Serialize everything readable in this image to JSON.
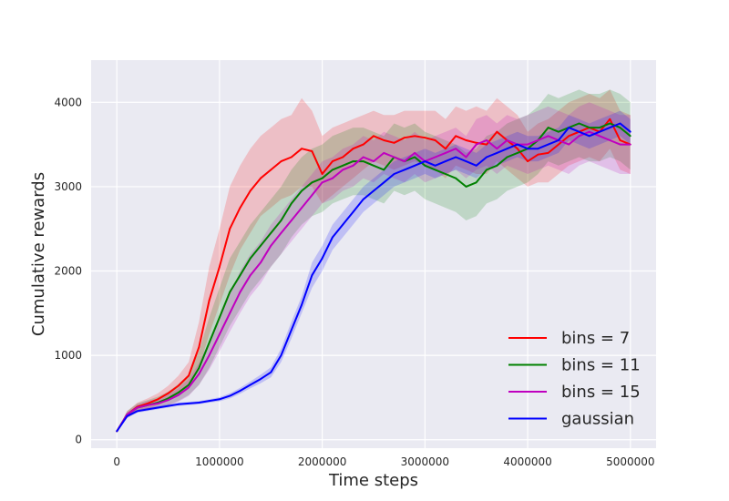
{
  "chart_data": {
    "type": "line",
    "title": "",
    "xlabel": "Time steps",
    "ylabel": "Cumulative rewards",
    "xlim": [
      -250000,
      5250000
    ],
    "ylim": [
      -100,
      4500
    ],
    "x_ticks": [
      0,
      1000000,
      2000000,
      3000000,
      4000000,
      5000000
    ],
    "x_tick_labels": [
      "0",
      "1000000",
      "2000000",
      "3000000",
      "4000000",
      "5000000"
    ],
    "y_ticks": [
      0,
      1000,
      2000,
      3000,
      4000
    ],
    "y_tick_labels": [
      "0",
      "1000",
      "2000",
      "3000",
      "4000"
    ],
    "grid": true,
    "background": "#eaeaf2",
    "legend_position": "lower-right",
    "x": [
      0,
      100000,
      200000,
      300000,
      400000,
      500000,
      600000,
      700000,
      800000,
      900000,
      1000000,
      1100000,
      1200000,
      1300000,
      1400000,
      1500000,
      1600000,
      1700000,
      1800000,
      1900000,
      2000000,
      2100000,
      2200000,
      2300000,
      2400000,
      2500000,
      2600000,
      2700000,
      2800000,
      2900000,
      3000000,
      3100000,
      3200000,
      3300000,
      3400000,
      3500000,
      3600000,
      3700000,
      3800000,
      3900000,
      4000000,
      4100000,
      4200000,
      4300000,
      4400000,
      4500000,
      4600000,
      4700000,
      4800000,
      4900000,
      5000000
    ],
    "series": [
      {
        "name": "bins = 7",
        "color": "#ff0000",
        "values": [
          100,
          300,
          390,
          430,
          480,
          550,
          640,
          760,
          1100,
          1650,
          2050,
          2500,
          2750,
          2950,
          3100,
          3200,
          3300,
          3350,
          3450,
          3420,
          3150,
          3300,
          3350,
          3450,
          3500,
          3600,
          3550,
          3520,
          3580,
          3600,
          3580,
          3550,
          3450,
          3600,
          3550,
          3520,
          3500,
          3650,
          3550,
          3450,
          3300,
          3380,
          3400,
          3500,
          3600,
          3650,
          3700,
          3650,
          3800,
          3550,
          3500
        ],
        "band": [
          [
            100,
            100
          ],
          [
            260,
            340
          ],
          [
            340,
            440
          ],
          [
            370,
            490
          ],
          [
            410,
            550
          ],
          [
            460,
            640
          ],
          [
            520,
            760
          ],
          [
            600,
            920
          ],
          [
            850,
            1400
          ],
          [
            1250,
            2050
          ],
          [
            1600,
            2500
          ],
          [
            1950,
            3000
          ],
          [
            2250,
            3250
          ],
          [
            2450,
            3450
          ],
          [
            2650,
            3600
          ],
          [
            2750,
            3700
          ],
          [
            2850,
            3800
          ],
          [
            2900,
            3850
          ],
          [
            3000,
            4050
          ],
          [
            3000,
            3900
          ],
          [
            2800,
            3600
          ],
          [
            2900,
            3700
          ],
          [
            3000,
            3750
          ],
          [
            3100,
            3800
          ],
          [
            3200,
            3850
          ],
          [
            3300,
            3900
          ],
          [
            3250,
            3850
          ],
          [
            3200,
            3850
          ],
          [
            3250,
            3900
          ],
          [
            3300,
            3900
          ],
          [
            3250,
            3900
          ],
          [
            3200,
            3900
          ],
          [
            3100,
            3800
          ],
          [
            3250,
            3950
          ],
          [
            3200,
            3900
          ],
          [
            3150,
            3950
          ],
          [
            3150,
            3900
          ],
          [
            3300,
            4050
          ],
          [
            3200,
            3950
          ],
          [
            3100,
            3850
          ],
          [
            3000,
            3650
          ],
          [
            3050,
            3750
          ],
          [
            3050,
            3800
          ],
          [
            3150,
            3900
          ],
          [
            3250,
            4000
          ],
          [
            3300,
            4050
          ],
          [
            3350,
            4100
          ],
          [
            3300,
            4050
          ],
          [
            3450,
            4150
          ],
          [
            3200,
            3900
          ],
          [
            3150,
            3850
          ]
        ]
      },
      {
        "name": "bins = 11",
        "color": "#008000",
        "values": [
          100,
          300,
          380,
          410,
          440,
          490,
          560,
          650,
          850,
          1150,
          1450,
          1750,
          1950,
          2150,
          2300,
          2450,
          2600,
          2800,
          2950,
          3050,
          3100,
          3200,
          3250,
          3300,
          3300,
          3250,
          3200,
          3350,
          3300,
          3350,
          3250,
          3200,
          3150,
          3100,
          3000,
          3050,
          3200,
          3250,
          3350,
          3400,
          3450,
          3550,
          3700,
          3650,
          3700,
          3750,
          3700,
          3700,
          3750,
          3700,
          3600
        ],
        "band": [
          [
            100,
            100
          ],
          [
            260,
            340
          ],
          [
            330,
            430
          ],
          [
            350,
            470
          ],
          [
            370,
            510
          ],
          [
            410,
            570
          ],
          [
            460,
            660
          ],
          [
            530,
            770
          ],
          [
            650,
            1050
          ],
          [
            850,
            1450
          ],
          [
            1100,
            1800
          ],
          [
            1350,
            2150
          ],
          [
            1550,
            2350
          ],
          [
            1750,
            2550
          ],
          [
            1900,
            2700
          ],
          [
            2050,
            2850
          ],
          [
            2200,
            3000
          ],
          [
            2400,
            3200
          ],
          [
            2550,
            3350
          ],
          [
            2650,
            3450
          ],
          [
            2700,
            3500
          ],
          [
            2800,
            3600
          ],
          [
            2850,
            3650
          ],
          [
            2900,
            3700
          ],
          [
            2900,
            3700
          ],
          [
            2850,
            3650
          ],
          [
            2800,
            3600
          ],
          [
            2950,
            3750
          ],
          [
            2900,
            3700
          ],
          [
            2950,
            3750
          ],
          [
            2850,
            3650
          ],
          [
            2800,
            3600
          ],
          [
            2750,
            3550
          ],
          [
            2700,
            3500
          ],
          [
            2600,
            3400
          ],
          [
            2650,
            3450
          ],
          [
            2800,
            3600
          ],
          [
            2850,
            3650
          ],
          [
            2950,
            3750
          ],
          [
            3000,
            3800
          ],
          [
            3050,
            3850
          ],
          [
            3150,
            3950
          ],
          [
            3300,
            4100
          ],
          [
            3250,
            4050
          ],
          [
            3300,
            4100
          ],
          [
            3350,
            4150
          ],
          [
            3300,
            4100
          ],
          [
            3300,
            4100
          ],
          [
            3350,
            4150
          ],
          [
            3300,
            4100
          ],
          [
            3200,
            4000
          ]
        ]
      },
      {
        "name": "bins = 15",
        "color": "#bf00bf",
        "values": [
          100,
          300,
          380,
          410,
          430,
          470,
          530,
          620,
          780,
          1000,
          1250,
          1500,
          1750,
          1950,
          2100,
          2300,
          2450,
          2600,
          2750,
          2900,
          3050,
          3100,
          3200,
          3250,
          3350,
          3300,
          3400,
          3350,
          3300,
          3400,
          3300,
          3350,
          3400,
          3450,
          3350,
          3500,
          3550,
          3450,
          3550,
          3500,
          3500,
          3550,
          3600,
          3550,
          3500,
          3600,
          3650,
          3600,
          3550,
          3500,
          3500
        ],
        "band": [
          [
            100,
            100
          ],
          [
            270,
            330
          ],
          [
            340,
            420
          ],
          [
            360,
            460
          ],
          [
            370,
            490
          ],
          [
            400,
            540
          ],
          [
            450,
            610
          ],
          [
            520,
            720
          ],
          [
            650,
            910
          ],
          [
            830,
            1170
          ],
          [
            1050,
            1450
          ],
          [
            1280,
            1720
          ],
          [
            1500,
            2000
          ],
          [
            1700,
            2200
          ],
          [
            1850,
            2350
          ],
          [
            2050,
            2550
          ],
          [
            2200,
            2700
          ],
          [
            2350,
            2850
          ],
          [
            2500,
            3000
          ],
          [
            2650,
            3150
          ],
          [
            2800,
            3300
          ],
          [
            2850,
            3350
          ],
          [
            2950,
            3450
          ],
          [
            3000,
            3500
          ],
          [
            3100,
            3600
          ],
          [
            3050,
            3550
          ],
          [
            3150,
            3650
          ],
          [
            3100,
            3600
          ],
          [
            3050,
            3550
          ],
          [
            3150,
            3650
          ],
          [
            3050,
            3550
          ],
          [
            3100,
            3600
          ],
          [
            3150,
            3650
          ],
          [
            3200,
            3700
          ],
          [
            3100,
            3600
          ],
          [
            3200,
            3800
          ],
          [
            3250,
            3850
          ],
          [
            3150,
            3750
          ],
          [
            3250,
            3850
          ],
          [
            3200,
            3800
          ],
          [
            3150,
            3850
          ],
          [
            3200,
            3900
          ],
          [
            3250,
            3950
          ],
          [
            3200,
            3900
          ],
          [
            3150,
            3850
          ],
          [
            3250,
            3950
          ],
          [
            3300,
            4000
          ],
          [
            3250,
            3950
          ],
          [
            3200,
            3900
          ],
          [
            3150,
            3850
          ],
          [
            3150,
            3850
          ]
        ]
      },
      {
        "name": "gaussian",
        "color": "#0000ff",
        "values": [
          100,
          280,
          340,
          360,
          380,
          400,
          420,
          430,
          440,
          460,
          480,
          520,
          580,
          650,
          720,
          800,
          1000,
          1300,
          1600,
          1950,
          2150,
          2400,
          2550,
          2700,
          2850,
          2950,
          3050,
          3150,
          3200,
          3250,
          3300,
          3250,
          3300,
          3350,
          3300,
          3250,
          3350,
          3400,
          3450,
          3500,
          3450,
          3450,
          3500,
          3550,
          3700,
          3650,
          3600,
          3650,
          3700,
          3750,
          3650
        ],
        "band": [
          [
            100,
            100
          ],
          [
            260,
            300
          ],
          [
            320,
            360
          ],
          [
            340,
            380
          ],
          [
            360,
            400
          ],
          [
            380,
            420
          ],
          [
            400,
            440
          ],
          [
            410,
            450
          ],
          [
            420,
            460
          ],
          [
            440,
            480
          ],
          [
            455,
            505
          ],
          [
            490,
            550
          ],
          [
            545,
            615
          ],
          [
            610,
            690
          ],
          [
            670,
            770
          ],
          [
            740,
            860
          ],
          [
            920,
            1080
          ],
          [
            1200,
            1400
          ],
          [
            1500,
            1700
          ],
          [
            1800,
            2100
          ],
          [
            2000,
            2300
          ],
          [
            2250,
            2550
          ],
          [
            2400,
            2700
          ],
          [
            2550,
            2850
          ],
          [
            2700,
            3000
          ],
          [
            2800,
            3100
          ],
          [
            2900,
            3200
          ],
          [
            3000,
            3300
          ],
          [
            3050,
            3350
          ],
          [
            3100,
            3400
          ],
          [
            3150,
            3450
          ],
          [
            3100,
            3400
          ],
          [
            3150,
            3450
          ],
          [
            3200,
            3500
          ],
          [
            3150,
            3450
          ],
          [
            3100,
            3400
          ],
          [
            3200,
            3500
          ],
          [
            3250,
            3550
          ],
          [
            3300,
            3600
          ],
          [
            3350,
            3650
          ],
          [
            3300,
            3600
          ],
          [
            3300,
            3600
          ],
          [
            3350,
            3650
          ],
          [
            3400,
            3700
          ],
          [
            3550,
            3850
          ],
          [
            3500,
            3800
          ],
          [
            3450,
            3750
          ],
          [
            3500,
            3800
          ],
          [
            3550,
            3850
          ],
          [
            3600,
            3900
          ],
          [
            3500,
            3800
          ]
        ]
      }
    ]
  }
}
